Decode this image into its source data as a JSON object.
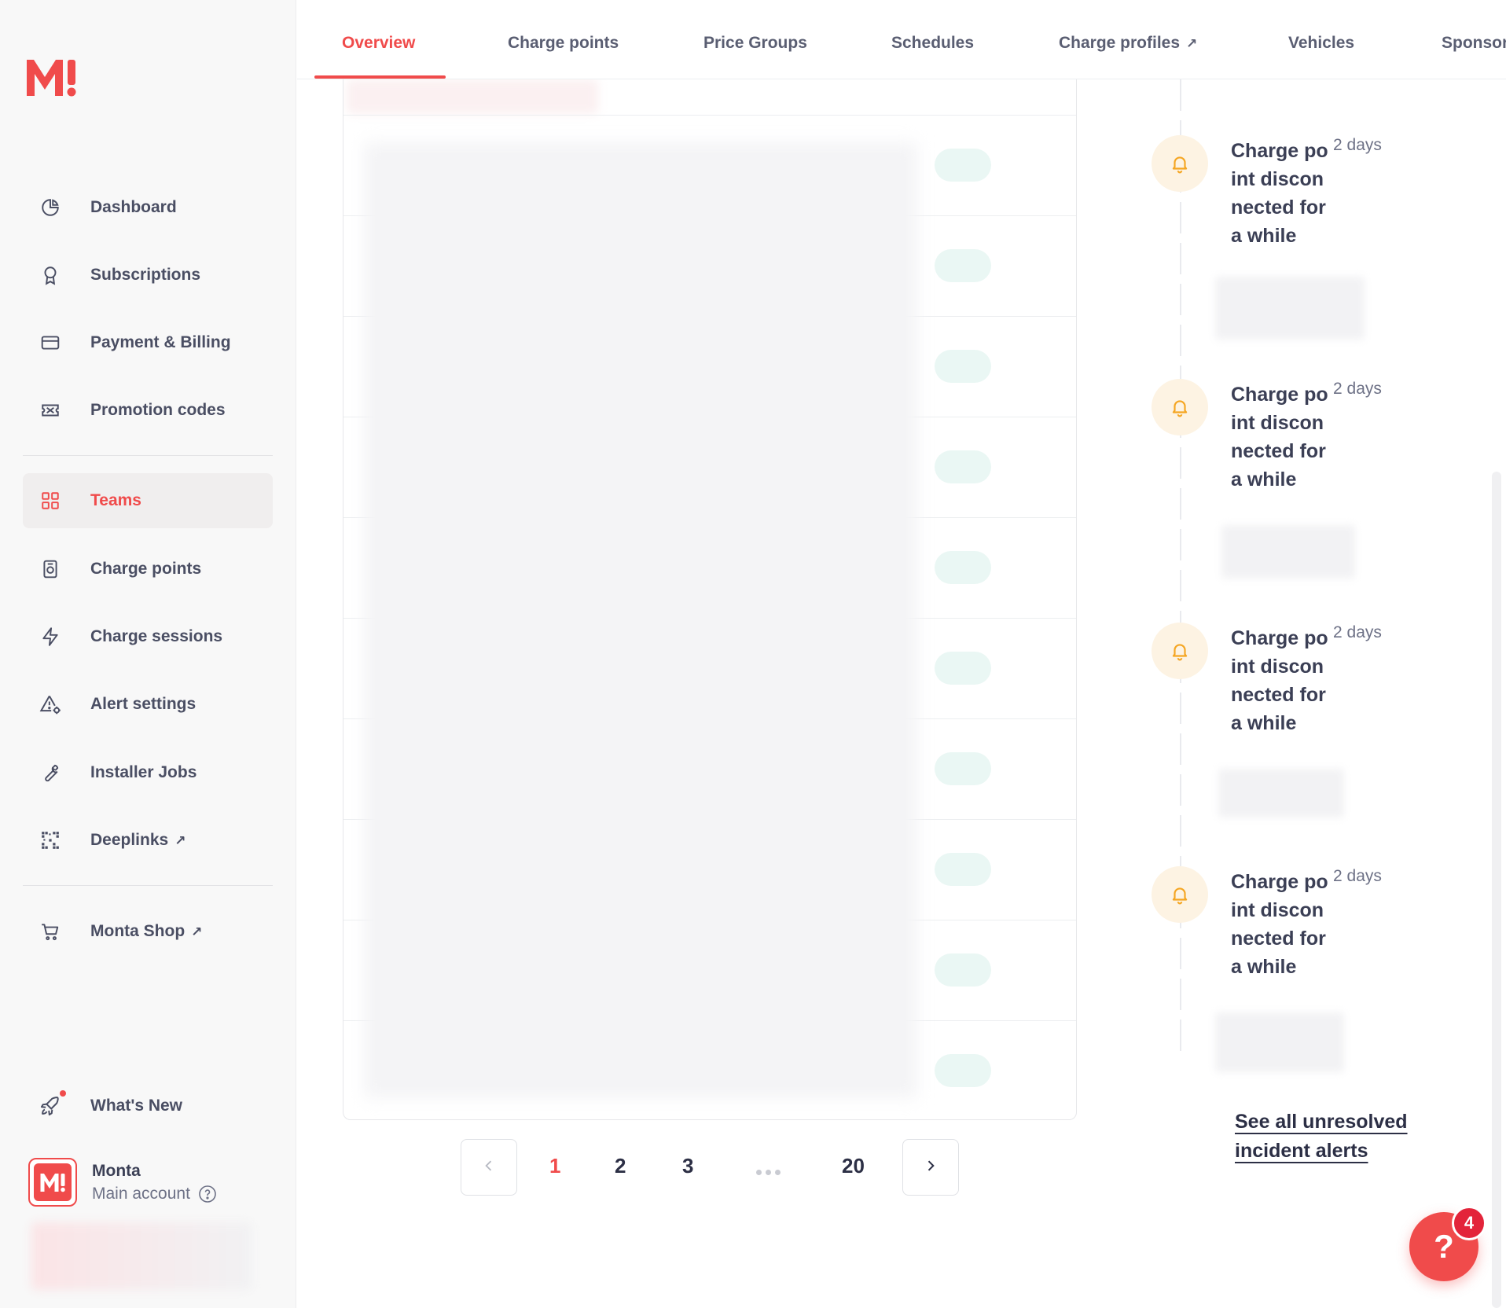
{
  "brand": {
    "logo_text": "M!",
    "accent": "#f04b4b"
  },
  "sidebar": {
    "items": [
      {
        "label": "Dashboard",
        "icon": "pie-chart-icon"
      },
      {
        "label": "Subscriptions",
        "icon": "award-icon"
      },
      {
        "label": "Payment & Billing",
        "icon": "credit-card-icon"
      },
      {
        "label": "Promotion codes",
        "icon": "ticket-icon"
      },
      {
        "label": "Teams",
        "icon": "grid-icon",
        "active": true
      },
      {
        "label": "Charge points",
        "icon": "charger-icon"
      },
      {
        "label": "Charge sessions",
        "icon": "lightning-icon"
      },
      {
        "label": "Alert settings",
        "icon": "alert-gear-icon"
      },
      {
        "label": "Installer Jobs",
        "icon": "wrench-icon"
      },
      {
        "label": "Deeplinks",
        "icon": "qr-code-icon",
        "external": true
      },
      {
        "label": "Monta Shop",
        "icon": "cart-icon",
        "external": true
      }
    ],
    "whats_new": "What's New",
    "account": {
      "name": "Monta",
      "subtitle": "Main account",
      "avatar_text": "M!"
    }
  },
  "tabs": [
    "Overview",
    "Charge points",
    "Price Groups",
    "Schedules",
    "Charge profiles",
    "Vehicles",
    "Sponsored"
  ],
  "active_tab": "Overview",
  "pagination": {
    "current": "1",
    "pages": [
      "1",
      "2",
      "3",
      "20"
    ]
  },
  "alerts": [
    {
      "title": "Charge point disconnected for a while",
      "time": "2 days"
    },
    {
      "title": "Charge point disconnected for a while",
      "time": "2 days"
    },
    {
      "title": "Charge point disconnected for a while",
      "time": "2 days"
    },
    {
      "title": "Charge point disconnected for a while",
      "time": "2 days"
    }
  ],
  "see_all_link": "See all unresolved incident alerts",
  "help": {
    "label": "?",
    "badge_count": "4"
  }
}
